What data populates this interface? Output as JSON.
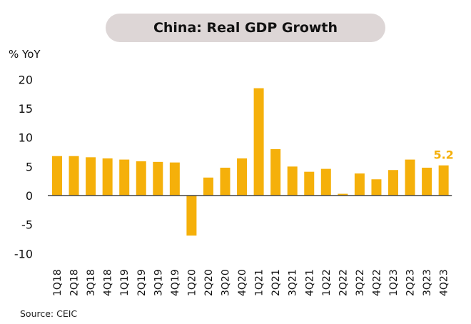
{
  "chart_data": {
    "type": "bar",
    "title": "China: Real GDP Growth",
    "ylabel": "% YoY",
    "xlabel": "",
    "ylim": [
      -10,
      20
    ],
    "yticks": [
      "20",
      "15",
      "10",
      "5",
      "0",
      "-5",
      "-10"
    ],
    "ytick_values": [
      20,
      15,
      10,
      5,
      0,
      -5,
      -10
    ],
    "categories": [
      "1Q18",
      "2Q18",
      "3Q18",
      "4Q18",
      "1Q19",
      "2Q19",
      "3Q19",
      "4Q19",
      "1Q20",
      "2Q20",
      "3Q20",
      "4Q20",
      "1Q21",
      "2Q21",
      "3Q21",
      "4Q21",
      "1Q22",
      "2Q22",
      "3Q22",
      "4Q22",
      "1Q23",
      "2Q23",
      "3Q23",
      "4Q23"
    ],
    "values": [
      6.8,
      6.8,
      6.6,
      6.4,
      6.2,
      5.9,
      5.8,
      5.7,
      -6.9,
      3.1,
      4.8,
      6.4,
      18.5,
      8.0,
      5.0,
      4.1,
      4.6,
      0.3,
      3.8,
      2.8,
      4.4,
      6.2,
      4.8,
      5.2
    ],
    "annotation": {
      "category": "4Q23",
      "label": "5.2"
    },
    "bar_color": "#f5b00a",
    "annotation_color": "#f5b00a",
    "grid": false,
    "legend": "none"
  },
  "source": "Source: CEIC"
}
